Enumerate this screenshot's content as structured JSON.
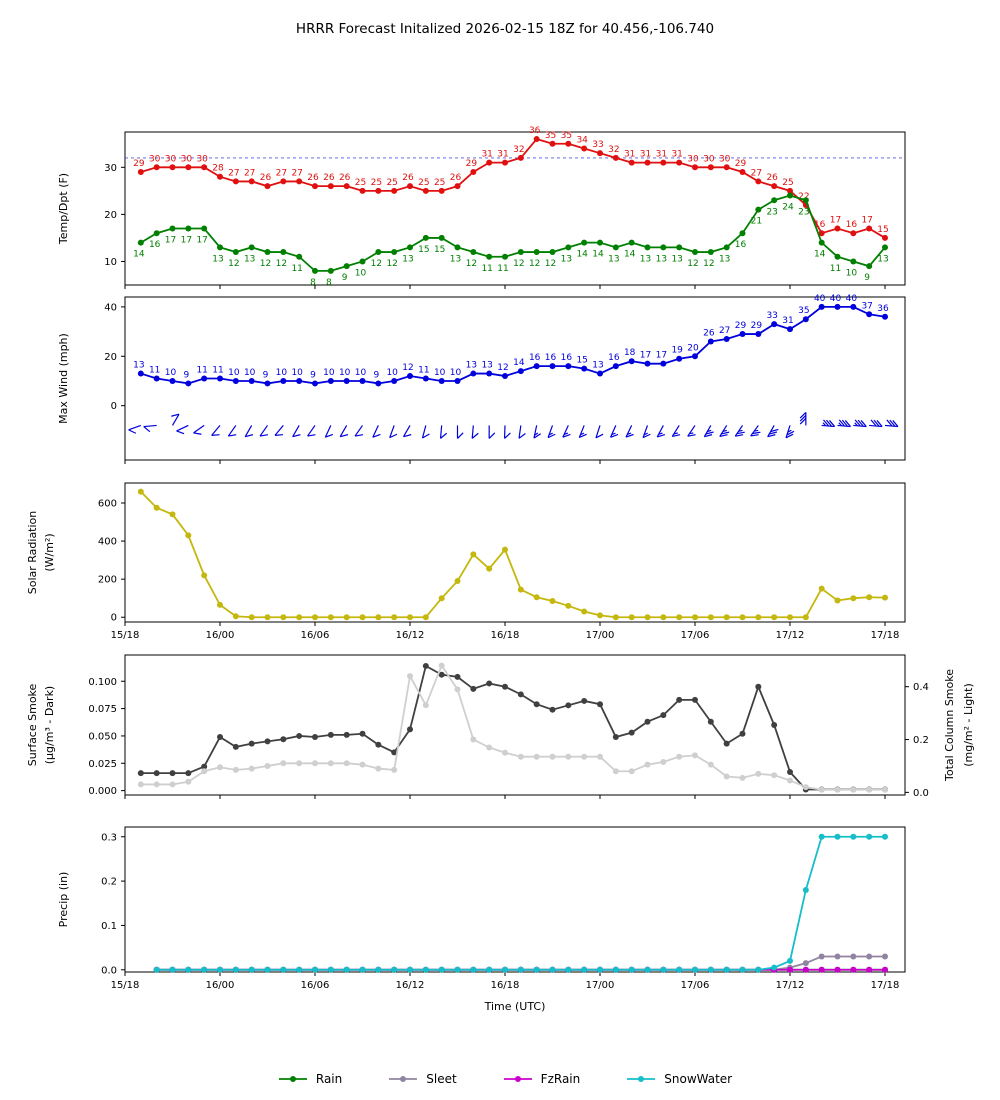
{
  "title": "HRRR Forecast Initalized 2026-02-15 18Z for 40.456,-106.740",
  "x_axis": {
    "label": "Time (UTC)",
    "tick_labels": [
      "15/18",
      "16/00",
      "16/06",
      "16/12",
      "16/18",
      "17/00",
      "17/06",
      "17/12",
      "17/18"
    ],
    "tick_hours": [
      0,
      6,
      12,
      18,
      24,
      30,
      36,
      42,
      48
    ],
    "hours_span": 49.3,
    "data_start_hour": 1
  },
  "legend": [
    {
      "label": "Rain",
      "color": "#008000"
    },
    {
      "label": "Sleet",
      "color": "#9184a1"
    },
    {
      "label": "FzRain",
      "color": "#cc00cc"
    },
    {
      "label": "SnowWater",
      "color": "#15bec9"
    }
  ],
  "chart_data": [
    {
      "type": "line",
      "name": "temperature-dewpoint",
      "ylabel": [
        "Temp/Dpt (F)"
      ],
      "yticks": [
        {
          "v": 10,
          "label": "10"
        },
        {
          "v": 20,
          "label": "20"
        },
        {
          "v": 30,
          "label": "30"
        }
      ],
      "ylim": [
        5,
        37.5
      ],
      "reference_line": {
        "value": 32,
        "style": "dashed",
        "color": "#5555dd"
      },
      "point_labels": true,
      "series": [
        {
          "name": "temperature",
          "color": "#e01010",
          "label_side": "above",
          "values": [
            29,
            30,
            30,
            30,
            30,
            28,
            27,
            27,
            26,
            27,
            27,
            26,
            26,
            26,
            25,
            25,
            25,
            26,
            25,
            25,
            26,
            29,
            31,
            31,
            32,
            36,
            35,
            35,
            34,
            33,
            32,
            31,
            31,
            31,
            31,
            30,
            30,
            30,
            29,
            27,
            26,
            25,
            22,
            16,
            17,
            16,
            17,
            15
          ]
        },
        {
          "name": "dewpoint",
          "color": "#008000",
          "label_side": "below",
          "values": [
            14,
            16,
            17,
            17,
            17,
            13,
            12,
            13,
            12,
            12,
            11,
            8,
            8,
            9,
            10,
            12,
            12,
            13,
            15,
            15,
            13,
            12,
            11,
            11,
            12,
            12,
            12,
            13,
            14,
            14,
            13,
            14,
            13,
            13,
            13,
            12,
            12,
            13,
            16,
            21,
            23,
            24,
            23,
            14,
            11,
            10,
            9,
            13
          ]
        }
      ]
    },
    {
      "type": "line",
      "name": "max-wind",
      "ylabel": [
        "Max Wind (mph)"
      ],
      "yticks": [
        {
          "v": 0,
          "label": "0"
        },
        {
          "v": 20,
          "label": "20"
        },
        {
          "v": 40,
          "label": "40"
        }
      ],
      "ylim": [
        -22,
        44
      ],
      "point_labels": true,
      "series": [
        {
          "name": "max-wind",
          "color": "#0000dd",
          "label_side": "above",
          "values": [
            13,
            11,
            10,
            9,
            11,
            11,
            10,
            10,
            9,
            10,
            10,
            9,
            10,
            10,
            10,
            9,
            10,
            12,
            11,
            10,
            10,
            13,
            13,
            12,
            14,
            16,
            16,
            16,
            15,
            13,
            16,
            18,
            17,
            17,
            19,
            20,
            26,
            27,
            29,
            29,
            33,
            31,
            35,
            40,
            40,
            40,
            37,
            36
          ]
        }
      ],
      "barbs": {
        "y_value": -8,
        "color": "#0000dd",
        "angles": [
          200,
          185,
          60,
          205,
          215,
          230,
          235,
          240,
          235,
          230,
          240,
          235,
          245,
          240,
          235,
          245,
          250,
          240,
          255,
          265,
          270,
          265,
          270,
          268,
          262,
          258,
          250,
          245,
          248,
          252,
          246,
          244,
          250,
          242,
          238,
          236,
          240,
          238,
          236,
          234,
          240,
          252,
          90,
          -5,
          -5,
          -5,
          -5,
          -5
        ]
      }
    },
    {
      "type": "line",
      "name": "solar-radiation",
      "ylabel": [
        "Solar Radiation",
        "(W/m²)"
      ],
      "yticks": [
        {
          "v": 0,
          "label": "0"
        },
        {
          "v": 200,
          "label": "200"
        },
        {
          "v": 400,
          "label": "400"
        },
        {
          "v": 600,
          "label": "600"
        }
      ],
      "ylim": [
        -25,
        705
      ],
      "show_xlabels": true,
      "series": [
        {
          "name": "solar",
          "color": "#c4b70d",
          "values": [
            660,
            575,
            540,
            430,
            220,
            65,
            5,
            0,
            0,
            0,
            0,
            0,
            0,
            0,
            0,
            0,
            0,
            0,
            0,
            100,
            190,
            330,
            255,
            355,
            145,
            105,
            85,
            60,
            30,
            10,
            0,
            0,
            0,
            0,
            0,
            0,
            0,
            0,
            0,
            0,
            0,
            0,
            0,
            150,
            88,
            100,
            105,
            103
          ]
        }
      ]
    },
    {
      "type": "line",
      "name": "smoke",
      "ylabel": [
        "Surface Smoke",
        "(µg/m³ - Dark)"
      ],
      "yticks": [
        {
          "v": 0.0,
          "label": "0.000"
        },
        {
          "v": 0.025,
          "label": "0.025"
        },
        {
          "v": 0.05,
          "label": "0.050"
        },
        {
          "v": 0.075,
          "label": "0.075"
        },
        {
          "v": 0.1,
          "label": "0.100"
        }
      ],
      "ylim": [
        -0.004,
        0.124
      ],
      "ylabel_right": [
        "Total Column Smoke",
        "(mg/m² - Light)"
      ],
      "yticks_right": [
        {
          "v": 0.0,
          "label": "0.0"
        },
        {
          "v": 0.2,
          "label": "0.2"
        },
        {
          "v": 0.4,
          "label": "0.4"
        }
      ],
      "ylim_right": [
        -0.01,
        0.52
      ],
      "series": [
        {
          "name": "surface-smoke",
          "color": "#404040",
          "values": [
            0.016,
            0.016,
            0.016,
            0.016,
            0.022,
            0.049,
            0.04,
            0.043,
            0.045,
            0.047,
            0.05,
            0.049,
            0.051,
            0.051,
            0.052,
            0.042,
            0.035,
            0.056,
            0.114,
            0.106,
            0.104,
            0.093,
            0.098,
            0.095,
            0.088,
            0.079,
            0.074,
            0.078,
            0.082,
            0.079,
            0.049,
            0.053,
            0.063,
            0.069,
            0.083,
            0.083,
            0.063,
            0.043,
            0.052,
            0.095,
            0.06,
            0.017,
            0.001,
            0.001,
            0.001,
            0.001,
            0.001,
            0.001
          ]
        },
        {
          "name": "total-column-smoke",
          "color": "#cfcfcf",
          "axis": "right",
          "values": [
            0.03,
            0.03,
            0.03,
            0.04,
            0.08,
            0.095,
            0.085,
            0.09,
            0.1,
            0.11,
            0.11,
            0.11,
            0.11,
            0.11,
            0.105,
            0.09,
            0.085,
            0.44,
            0.33,
            0.48,
            0.39,
            0.2,
            0.17,
            0.15,
            0.135,
            0.135,
            0.135,
            0.135,
            0.135,
            0.135,
            0.08,
            0.08,
            0.105,
            0.115,
            0.135,
            0.14,
            0.105,
            0.06,
            0.055,
            0.07,
            0.065,
            0.045,
            0.02,
            0.01,
            0.01,
            0.01,
            0.01,
            0.01
          ]
        }
      ]
    },
    {
      "type": "line",
      "name": "precip",
      "ylabel": [
        "Precip (in)"
      ],
      "yticks": [
        {
          "v": 0.0,
          "label": "0.0"
        },
        {
          "v": 0.1,
          "label": "0.1"
        },
        {
          "v": 0.2,
          "label": "0.2"
        },
        {
          "v": 0.3,
          "label": "0.3"
        }
      ],
      "ylim": [
        -0.005,
        0.322
      ],
      "show_xlabels": true,
      "show_xtitle": true,
      "series": [
        {
          "name": "rain",
          "color": "#008000",
          "values": [
            null,
            0,
            0,
            0,
            0,
            0,
            0,
            0,
            0,
            0,
            0,
            0,
            0,
            0,
            0,
            0,
            0,
            0,
            0,
            0,
            0,
            0,
            0,
            0,
            0,
            0,
            0,
            0,
            0,
            0,
            0,
            0,
            0,
            0,
            0,
            0,
            0,
            0,
            0,
            0,
            0,
            0,
            0,
            0,
            0,
            0,
            0,
            0
          ]
        },
        {
          "name": "sleet",
          "color": "#9184a1",
          "values": [
            null,
            0,
            0,
            0,
            0,
            0,
            0,
            0,
            0,
            0,
            0,
            0,
            0,
            0,
            0,
            0,
            0,
            0,
            0,
            0,
            0,
            0,
            0,
            0,
            0,
            0,
            0,
            0,
            0,
            0,
            0,
            0,
            0,
            0,
            0,
            0,
            0,
            0,
            0,
            0,
            0,
            0.005,
            0.015,
            0.03,
            0.03,
            0.03,
            0.03,
            0.03
          ]
        },
        {
          "name": "fzrain",
          "color": "#cc00cc",
          "values": [
            null,
            0,
            0,
            0,
            0,
            0,
            0,
            0,
            0,
            0,
            0,
            0,
            0,
            0,
            0,
            0,
            0,
            0,
            0,
            0,
            0,
            0,
            0,
            0,
            0,
            0,
            0,
            0,
            0,
            0,
            0,
            0,
            0,
            0,
            0,
            0,
            0,
            0,
            0,
            0,
            0,
            0,
            0,
            0,
            0,
            0,
            0,
            0
          ]
        },
        {
          "name": "snowwater",
          "color": "#15bec9",
          "values": [
            null,
            0,
            0,
            0,
            0,
            0,
            0,
            0,
            0,
            0,
            0,
            0,
            0,
            0,
            0,
            0,
            0,
            0,
            0,
            0,
            0,
            0,
            0,
            0,
            0,
            0,
            0,
            0,
            0,
            0,
            0,
            0,
            0,
            0,
            0,
            0,
            0,
            0,
            0,
            0,
            0.005,
            0.02,
            0.18,
            0.3,
            0.3,
            0.3,
            0.3,
            0.3
          ]
        }
      ]
    }
  ]
}
